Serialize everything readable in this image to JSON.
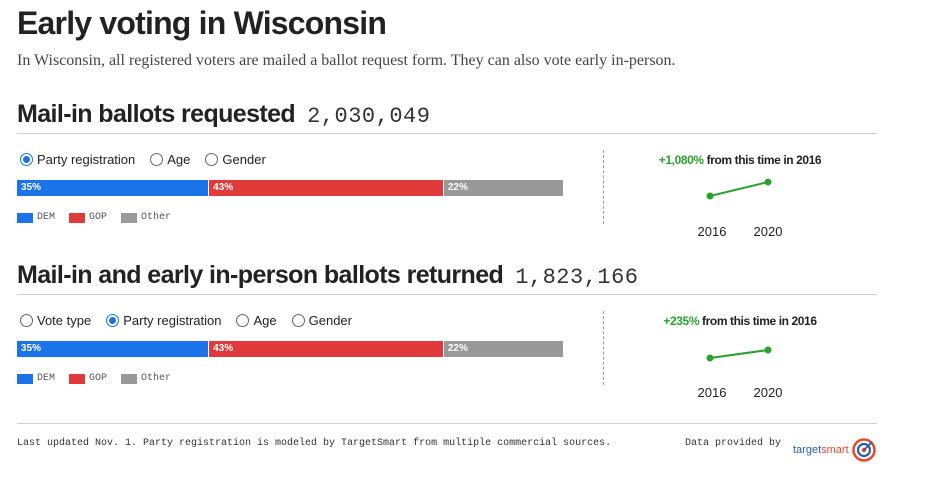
{
  "title": "Early voting in Wisconsin",
  "subtitle": "In Wisconsin, all registered voters are mailed a ballot request form. They can also vote early in-person.",
  "colors": {
    "dem": "#1a73e8",
    "gop": "#e03a3a",
    "other": "#999999",
    "growth": "#2ca02c"
  },
  "sections": [
    {
      "title": "Mail-in ballots requested",
      "count": "2,030,049",
      "radios": [
        {
          "label": "Party registration",
          "checked": true
        },
        {
          "label": "Age",
          "checked": false
        },
        {
          "label": "Gender",
          "checked": false
        }
      ],
      "legend": [
        "DEM",
        "GOP",
        "Other"
      ],
      "growth_pct": "+1,080%",
      "growth_text": " from this time in 2016",
      "years": [
        "2016",
        "2020"
      ]
    },
    {
      "title": "Mail-in and early in-person ballots returned",
      "count": "1,823,166",
      "radios": [
        {
          "label": "Vote type",
          "checked": false
        },
        {
          "label": "Party registration",
          "checked": true
        },
        {
          "label": "Age",
          "checked": false
        },
        {
          "label": "Gender",
          "checked": false
        }
      ],
      "legend": [
        "DEM",
        "GOP",
        "Other"
      ],
      "growth_pct": "+235%",
      "growth_text": " from this time in 2016",
      "years": [
        "2016",
        "2020"
      ]
    }
  ],
  "chart_data": [
    {
      "type": "bar",
      "title": "Mail-in ballots requested",
      "categories": [
        "DEM",
        "GOP",
        "Other"
      ],
      "values": [
        35,
        43,
        22
      ],
      "labels": [
        "35%",
        "43%",
        "22%"
      ],
      "stacked": true,
      "unit": "%"
    },
    {
      "type": "line",
      "x": [
        "2016",
        "2020"
      ],
      "values": [
        172038,
        2030049
      ],
      "annotation": "+1,080% from this time in 2016"
    },
    {
      "type": "bar",
      "title": "Mail-in and early in-person ballots returned",
      "categories": [
        "DEM",
        "GOP",
        "Other"
      ],
      "values": [
        35,
        43,
        22
      ],
      "labels": [
        "35%",
        "43%",
        "22%"
      ],
      "stacked": true,
      "unit": "%"
    },
    {
      "type": "line",
      "x": [
        "2016",
        "2020"
      ],
      "values": [
        544228,
        1823166
      ],
      "annotation": "+235% from this time in 2016"
    }
  ],
  "footer": {
    "note": "Last updated Nov. 1. Party registration is modeled by TargetSmart from multiple commercial sources.",
    "provided_by": "Data provided by",
    "logo_target": "target",
    "logo_smart": "smart"
  }
}
